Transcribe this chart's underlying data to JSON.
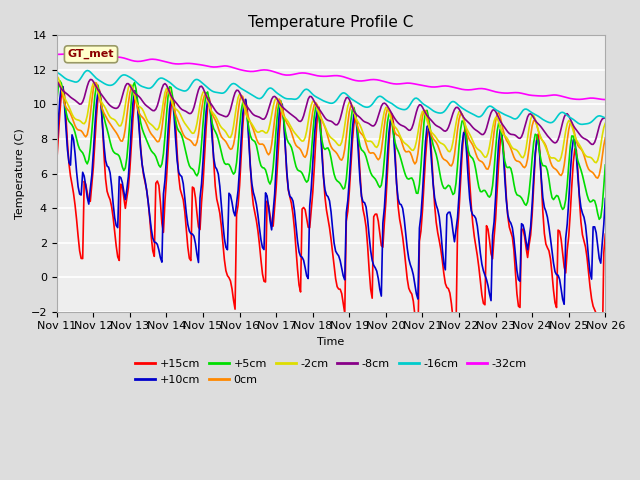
{
  "title": "Temperature Profile C",
  "xlabel": "Time",
  "ylabel": "Temperature (C)",
  "ylim": [
    -2,
    14
  ],
  "yticks": [
    -2,
    0,
    2,
    4,
    6,
    8,
    10,
    12,
    14
  ],
  "xlim": [
    0,
    360
  ],
  "xtick_positions": [
    0,
    24,
    48,
    72,
    96,
    120,
    144,
    168,
    192,
    216,
    240,
    264,
    288,
    312,
    336,
    360
  ],
  "xtick_labels": [
    "Nov 11",
    "Nov 12",
    "Nov 13",
    "Nov 14",
    "Nov 15",
    "Nov 16",
    "Nov 17",
    "Nov 18",
    "Nov 19",
    "Nov 20",
    "Nov 21",
    "Nov 22",
    "Nov 23",
    "Nov 24",
    "Nov 25",
    "Nov 26"
  ],
  "series": [
    {
      "label": "+15cm",
      "color": "#ff0000",
      "lw": 1.2
    },
    {
      "label": "+10cm",
      "color": "#0000cc",
      "lw": 1.2
    },
    {
      "label": "+5cm",
      "color": "#00dd00",
      "lw": 1.2
    },
    {
      "label": "0cm",
      "color": "#ff8800",
      "lw": 1.2
    },
    {
      "label": "-2cm",
      "color": "#dddd00",
      "lw": 1.2
    },
    {
      "label": "-8cm",
      "color": "#880088",
      "lw": 1.2
    },
    {
      "label": "-16cm",
      "color": "#00cccc",
      "lw": 1.2
    },
    {
      "label": "-32cm",
      "color": "#ff00ff",
      "lw": 1.2
    }
  ],
  "legend_label": "GT_met",
  "legend_label_color": "#8B0000",
  "legend_bg_color": "#ffffcc",
  "bg_color": "#dddddd",
  "plot_bg_color": "#eeeeee",
  "title_fontsize": 11,
  "axis_label_fontsize": 8,
  "tick_fontsize": 8
}
